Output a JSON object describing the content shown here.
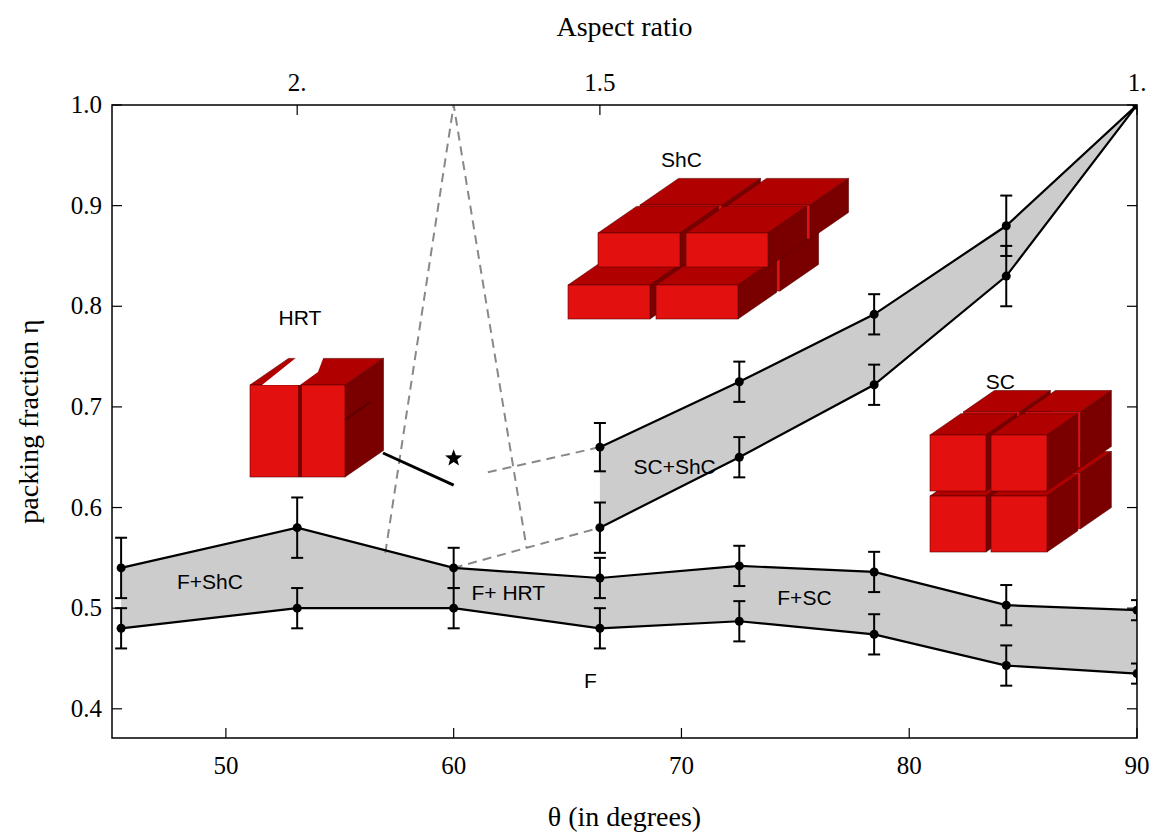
{
  "chart_data": {
    "type": "phase_diagram",
    "x_label": "θ (in degrees)",
    "y_label": "packing fraction η",
    "top_axis": {
      "label": "Aspect ratio",
      "ticks": [
        {
          "value": 53.13,
          "label": "2."
        },
        {
          "value": 66.42,
          "label": "1.5"
        },
        {
          "value": 90,
          "label": "1."
        }
      ]
    },
    "xlim": [
      45,
      90
    ],
    "ylim": [
      0.371,
      1.0
    ],
    "xticks": [
      50,
      60,
      70,
      80,
      90
    ],
    "yticks": [
      0.4,
      0.5,
      0.6,
      0.7,
      0.8,
      0.9,
      {
        "value": 1,
        "label": "1.0"
      }
    ],
    "series": [
      {
        "type": "band",
        "color": "#cccccc",
        "marker": "circle",
        "x": [
          45.4,
          53.13,
          60,
          66.42,
          72.54,
          78.46,
          84.26,
          90
        ],
        "lower": [
          0.48,
          0.5,
          0.5,
          0.48,
          0.487,
          0.474,
          0.443,
          0.435
        ],
        "lower_errors": [
          0.02,
          0.02,
          0.02,
          0.02,
          0.02,
          0.02,
          0.02,
          0.01
        ],
        "upper": [
          0.54,
          0.58,
          0.54,
          0.53,
          0.542,
          0.536,
          0.503,
          0.498
        ],
        "upper_errors": [
          0.03,
          0.03,
          0.02,
          0.02,
          0.02,
          0.02,
          0.02,
          0.01
        ]
      },
      {
        "type": "band",
        "color": "#cccccc",
        "marker": "circle",
        "x": [
          66.42,
          72.54,
          78.46,
          84.26,
          90
        ],
        "lower": [
          0.58,
          0.65,
          0.722,
          0.83,
          1.0
        ],
        "lower_errors": [
          0.025,
          0.02,
          0.02,
          0.03,
          null
        ],
        "upper": [
          0.66,
          0.725,
          0.792,
          0.88,
          1.0
        ],
        "upper_errors": [
          0.024,
          0.02,
          0.02,
          0.03,
          null
        ]
      },
      {
        "type": "line",
        "line_style": "dashed",
        "color": "#888888",
        "x": [
          57,
          60,
          63.2
        ],
        "values": [
          0.555,
          1.0,
          0.56
        ]
      },
      {
        "type": "line",
        "line_style": "dashed",
        "color": "#888888",
        "x": [
          60,
          66.42
        ],
        "values": [
          0.54,
          0.58
        ]
      },
      {
        "type": "line",
        "line_style": "dashed",
        "color": "#888888",
        "x": [
          61.5,
          66.42
        ],
        "values": [
          0.635,
          0.66
        ]
      },
      {
        "type": "scatter",
        "marker": "star",
        "color": "#000000",
        "x": [
          60
        ],
        "values": [
          0.649
        ]
      }
    ],
    "annotations": [
      {
        "text": "ShC",
        "x": 70.0,
        "y": 0.945
      },
      {
        "text": "HRT",
        "x": 53.25,
        "y": 0.788
      },
      {
        "text": "SC",
        "x": 84.0,
        "y": 0.725
      },
      {
        "text": "F+ShC",
        "x": 49.3,
        "y": 0.526
      },
      {
        "text": "F+ HRT",
        "x": 62.4,
        "y": 0.515
      },
      {
        "text": "F+SC",
        "x": 75.4,
        "y": 0.51
      },
      {
        "text": "F",
        "x": 66.0,
        "y": 0.428
      },
      {
        "text": "SC+ShC",
        "x": 69.7,
        "y": 0.64
      }
    ]
  }
}
